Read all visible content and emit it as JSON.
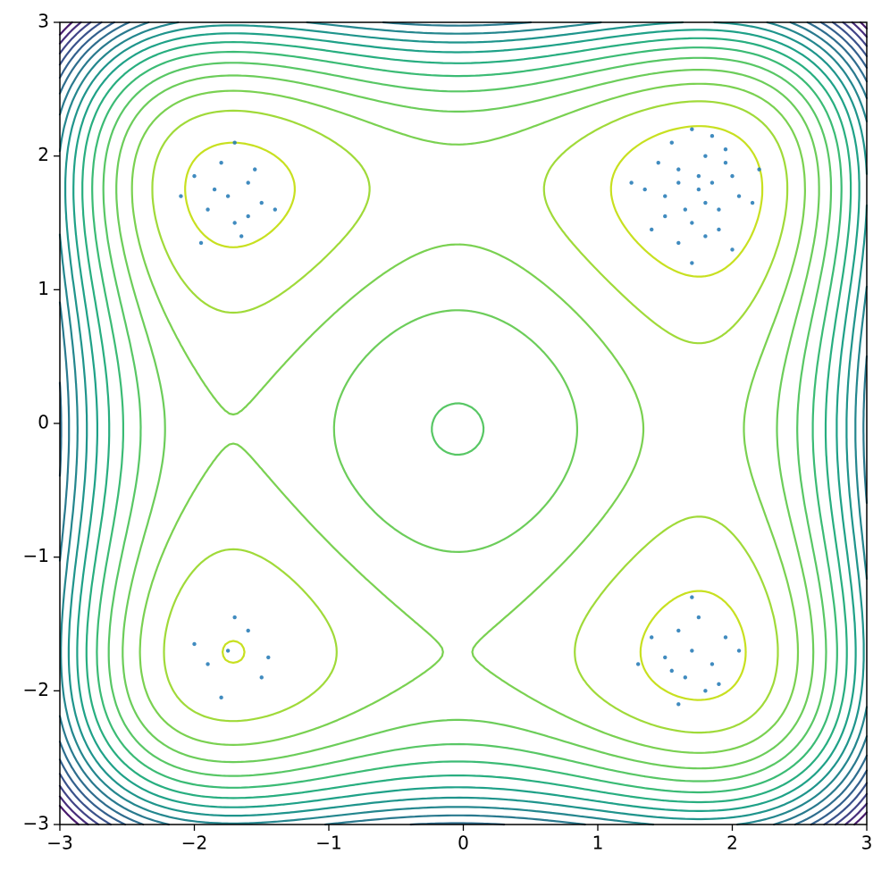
{
  "chart_data": {
    "type": "contour",
    "xlim": [
      -3,
      3
    ],
    "ylim": [
      -3,
      3
    ],
    "xticks": [
      {
        "value": -3,
        "label": "−3"
      },
      {
        "value": -2,
        "label": "−2"
      },
      {
        "value": -1,
        "label": "−1"
      },
      0,
      1,
      2,
      3
    ],
    "yticks": [
      {
        "value": -3,
        "label": "−3"
      },
      {
        "value": -2,
        "label": "−2"
      },
      {
        "value": -1,
        "label": "−1"
      },
      0,
      1,
      2,
      3
    ],
    "contour": {
      "well": 3,
      "tilt": 0.5,
      "levels": [
        1.8,
        5.8,
        9.8,
        13.8,
        17.8,
        21.8,
        25.8,
        29.8,
        33.8,
        37.8,
        41.8,
        45.8,
        49.8,
        53.8,
        57.8,
        61.8,
        65.8
      ],
      "colors": [
        "#c8e020",
        "#a0da39",
        "#7ad151",
        "#6ccd5a",
        "#58c765",
        "#3bbb75",
        "#28ae80",
        "#1fa188",
        "#1f948c",
        "#24868e",
        "#29798e",
        "#2e6d8e",
        "#33608d",
        "#3a528b",
        "#414487",
        "#472d7b",
        "#481a6c"
      ]
    },
    "scatter": {
      "color": "#1f77b4",
      "x": [
        1.75,
        1.6,
        1.9,
        1.5,
        2.0,
        1.7,
        1.8,
        1.45,
        2.05,
        1.65,
        1.85,
        1.55,
        1.95,
        1.35,
        2.15,
        1.7,
        1.8,
        1.6,
        1.9,
        1.75,
        1.25,
        2.2,
        1.7,
        1.5,
        2.0,
        1.8,
        1.6,
        1.95,
        1.4,
        1.85,
        -1.75,
        -1.6,
        -1.9,
        -1.7,
        -1.5,
        -2.0,
        -1.8,
        -1.65,
        -1.85,
        -1.55,
        -2.1,
        -1.4,
        -1.7,
        -1.95,
        -1.6,
        1.7,
        1.6,
        1.85,
        1.5,
        1.75,
        1.95,
        1.65,
        1.4,
        1.8,
        2.05,
        1.55,
        1.7,
        1.3,
        1.9,
        1.6,
        -1.75,
        -1.6,
        -1.9,
        -1.5,
        -1.7,
        -2.0,
        -1.8,
        -1.45
      ],
      "y": [
        1.75,
        1.9,
        1.6,
        1.7,
        1.85,
        1.5,
        2.0,
        1.95,
        1.7,
        1.6,
        1.8,
        2.1,
        2.05,
        1.75,
        1.65,
        2.2,
        1.4,
        1.35,
        1.45,
        1.85,
        1.8,
        1.9,
        1.2,
        1.55,
        1.3,
        1.65,
        1.8,
        1.95,
        1.45,
        2.15,
        1.7,
        1.8,
        1.6,
        1.5,
        1.65,
        1.85,
        1.95,
        1.4,
        1.75,
        1.9,
        1.7,
        1.6,
        2.1,
        1.35,
        1.55,
        -1.7,
        -1.55,
        -1.8,
        -1.75,
        -1.45,
        -1.6,
        -1.9,
        -1.6,
        -2.0,
        -1.7,
        -1.85,
        -1.3,
        -1.8,
        -1.95,
        -2.1,
        -1.7,
        -1.55,
        -1.8,
        -1.9,
        -1.45,
        -1.65,
        -2.05,
        -1.75
      ]
    }
  }
}
